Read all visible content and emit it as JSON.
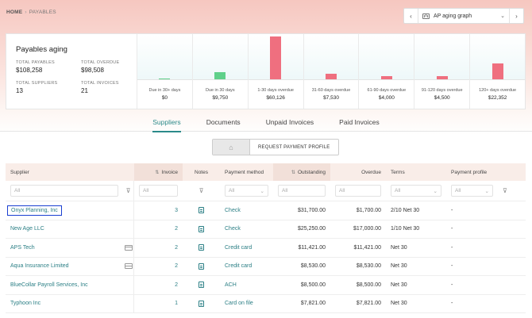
{
  "breadcrumb": {
    "home": "HOME",
    "separator": "›",
    "current": "PAYABLES"
  },
  "graph_selector": {
    "label": "AP aging graph",
    "prev": "‹",
    "next": "›",
    "chevron": "⌄",
    "icon": "bar-chart-icon"
  },
  "summary": {
    "title": "Payables aging",
    "stats": [
      {
        "label": "TOTAL PAYABLES",
        "value": "$108,258"
      },
      {
        "label": "TOTAL OVERDUE",
        "value": "$98,508"
      },
      {
        "label": "TOTAL SUPPLIERS",
        "value": "13"
      },
      {
        "label": "TOTAL INVOICES",
        "value": "21"
      }
    ],
    "buckets": [
      {
        "label": "Due in 30+ days",
        "value": "$0",
        "amount": 0,
        "color": "#5fd08a"
      },
      {
        "label": "Due in 30 days",
        "value": "$9,750",
        "amount": 9750,
        "color": "#5fd08a"
      },
      {
        "label": "1-30 days overdue",
        "value": "$60,126",
        "amount": 60126,
        "color": "#ef6f7f"
      },
      {
        "label": "31-60 days overdue",
        "value": "$7,530",
        "amount": 7530,
        "color": "#ef6f7f"
      },
      {
        "label": "61-90 days overdue",
        "value": "$4,000",
        "amount": 4000,
        "color": "#ef6f7f"
      },
      {
        "label": "91-120 days overdue",
        "value": "$4,500",
        "amount": 4500,
        "color": "#ef6f7f"
      },
      {
        "label": "120+ days overdue",
        "value": "$22,352",
        "amount": 22352,
        "color": "#ef6f7f"
      }
    ]
  },
  "tabs": [
    "Suppliers",
    "Documents",
    "Unpaid Invoices",
    "Paid Invoices"
  ],
  "toolbar": {
    "home_icon": "⌂",
    "request_label": "REQUEST PAYMENT PROFILE"
  },
  "table": {
    "headers": {
      "supplier": "Supplier",
      "invoice": "Invoice",
      "notes": "Notes",
      "payment_method": "Payment method",
      "outstanding": "Outstanding",
      "overdue": "Overdue",
      "terms": "Terms",
      "payment_profile": "Payment profile",
      "sort_icon": "⇅"
    },
    "filters": {
      "placeholder": "All",
      "funnel": "⊽",
      "chevron": "⌄"
    },
    "rows": [
      {
        "supplier": "Onyx Planning, Inc",
        "card": false,
        "invoice": "3",
        "method": "Check",
        "outstanding": "$31,700.00",
        "overdue": "$1,700.00",
        "terms": "2/10 Net 30",
        "profile": "-"
      },
      {
        "supplier": "New Age LLC",
        "card": false,
        "invoice": "2",
        "method": "Check",
        "outstanding": "$25,250.00",
        "overdue": "$17,000.00",
        "terms": "1/10 Net 30",
        "profile": "-"
      },
      {
        "supplier": "APS Tech",
        "card": true,
        "invoice": "2",
        "method": "Credit card",
        "outstanding": "$11,421.00",
        "overdue": "$11,421.00",
        "terms": "Net 30",
        "profile": "-"
      },
      {
        "supplier": "Aqua Insurance Limited",
        "card": true,
        "invoice": "2",
        "method": "Credit card",
        "outstanding": "$8,530.00",
        "overdue": "$8,530.00",
        "terms": "Net 30",
        "profile": "-"
      },
      {
        "supplier": "BlueCollar Payroll Services, Inc",
        "card": false,
        "invoice": "2",
        "method": "ACH",
        "outstanding": "$8,500.00",
        "overdue": "$8,500.00",
        "terms": "Net 30",
        "profile": "-"
      },
      {
        "supplier": "Typhoon Inc",
        "card": false,
        "invoice": "1",
        "method": "Card on file",
        "outstanding": "$7,821.00",
        "overdue": "$7,821.00",
        "terms": "Net 30",
        "profile": "-"
      }
    ]
  }
}
